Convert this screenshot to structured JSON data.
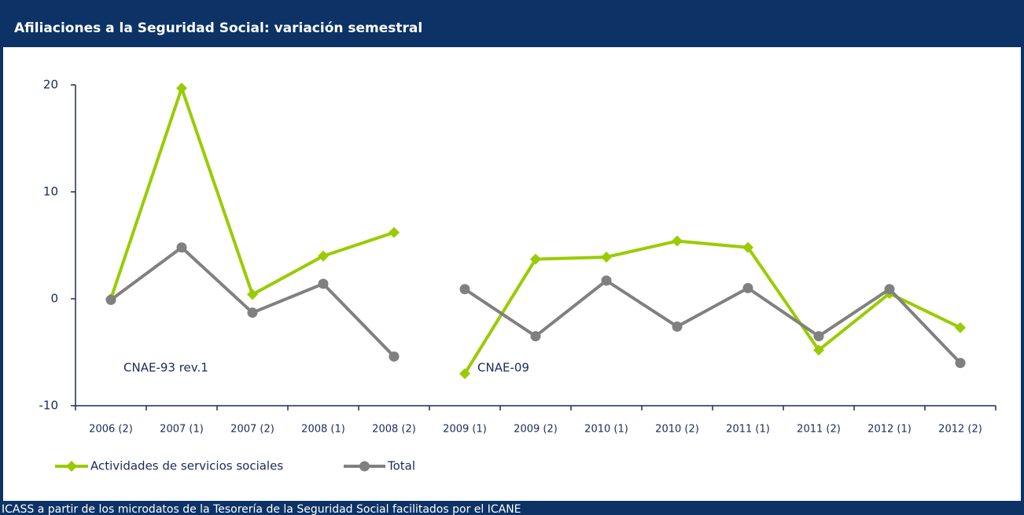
{
  "chart_data": {
    "type": "line",
    "title": "Afiliaciones a la Seguridad Social: variación semestral",
    "source": "ICASS a partir de los microdatos de la Tesorería de la Seguridad Social facilitados por el ICANE",
    "categories": [
      "2006 (2)",
      "2007 (1)",
      "2007 (2)",
      "2008 (1)",
      "2008 (2)",
      "2009 (1)",
      "2009 (2)",
      "2010 (1)",
      "2010 (2)",
      "2011 (1)",
      "2011 (2)",
      "2012 (1)",
      "2012 (2)"
    ],
    "line_breaks_after": [
      4
    ],
    "series": [
      {
        "name": "Actividades de servicios sociales",
        "color": "#99cc00",
        "marker": "diamond",
        "values": [
          0,
          19.7,
          0.4,
          4.0,
          6.2,
          -7.0,
          3.7,
          3.9,
          5.4,
          4.8,
          -4.8,
          0.5,
          -2.7
        ]
      },
      {
        "name": "Total",
        "color": "#808080",
        "marker": "circle",
        "values": [
          -0.1,
          4.8,
          -1.3,
          1.4,
          -5.4,
          0.9,
          -3.5,
          1.7,
          -2.6,
          1.0,
          -3.5,
          0.9,
          -6.0
        ]
      }
    ],
    "annotations": [
      {
        "text": "CNAE-93 rev.1",
        "category": 0
      },
      {
        "text": "CNAE-09",
        "category": 5
      }
    ],
    "ylim": [
      -10,
      20
    ],
    "yticks": [
      -10,
      0,
      10,
      20
    ],
    "grid": false,
    "legend": "bottom-left"
  }
}
